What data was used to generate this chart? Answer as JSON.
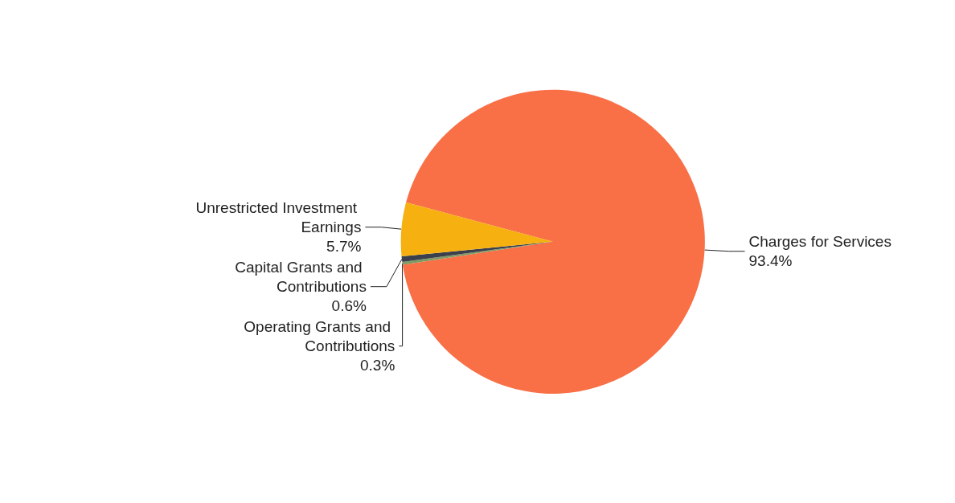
{
  "chart_data": {
    "type": "pie",
    "categories": [
      "Charges for Services",
      "Operating Grants and Contributions",
      "Capital Grants and Contributions",
      "Unrestricted Investment Earnings"
    ],
    "values": [
      93.4,
      0.3,
      0.6,
      5.7
    ],
    "colors": [
      "#f96f46",
      "#7f9a62",
      "#3b404c",
      "#f6b010"
    ],
    "value_labels": [
      "93.4%",
      "0.3%",
      "0.6%",
      "5.7%"
    ]
  }
}
